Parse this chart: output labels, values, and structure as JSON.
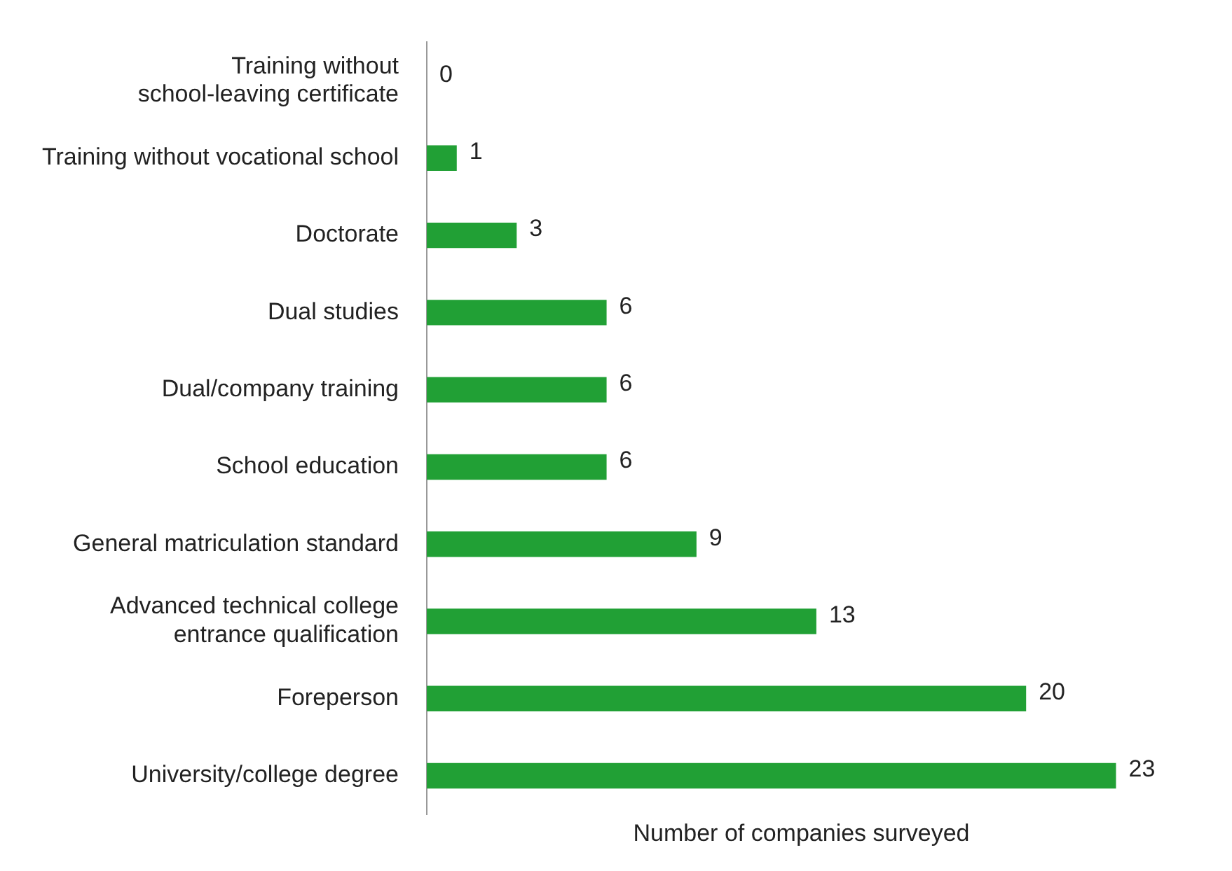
{
  "chart_data": {
    "type": "bar",
    "orientation": "horizontal",
    "xlabel": "Number of companies surveyed",
    "categories": [
      "Training without\nschool-leaving certificate",
      "Training without vocational school",
      "Doctorate",
      "Dual studies",
      "Dual/company training",
      "School education",
      "General matriculation standard",
      "Advanced technical college\nentrance qualification",
      "Foreperson",
      "University/college degree"
    ],
    "values": [
      0,
      1,
      3,
      6,
      6,
      6,
      9,
      13,
      20,
      23
    ],
    "color": "#21a035",
    "data_labels": true,
    "grid": false,
    "legend": false,
    "tick_labels": "y"
  }
}
